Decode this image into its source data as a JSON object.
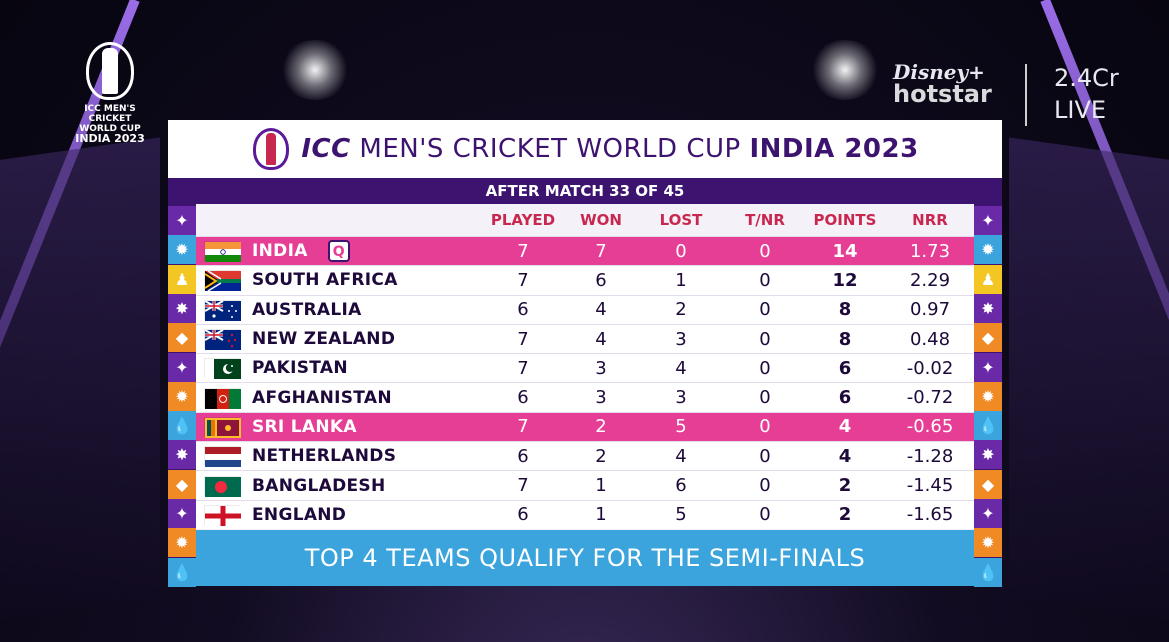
{
  "logo": {
    "lines": [
      "ICC MEN'S",
      "CRICKET",
      "WORLD CUP",
      "INDIA 2023"
    ]
  },
  "broadcaster": {
    "disney": "Disney+",
    "hotstar": "hotstar",
    "viewers": "2.4Cr",
    "status": "LIVE"
  },
  "board": {
    "title_icc": "ICC",
    "title_middle": "MEN'S CRICKET WORLD CUP",
    "title_bold": "INDIA 2023",
    "subtitle": "AFTER MATCH 33 OF 45",
    "footer": "TOP 4 TEAMS QUALIFY FOR THE SEMI-FINALS"
  },
  "columns": {
    "played": "PLAYED",
    "won": "WON",
    "lost": "LOST",
    "tnr": "T/NR",
    "points": "POINTS",
    "nrr": "NRR"
  },
  "teams": [
    {
      "name": "INDIA",
      "badge": "Q",
      "played": "7",
      "won": "7",
      "lost": "0",
      "tnr": "0",
      "points": "14",
      "nrr": "1.73"
    },
    {
      "name": "SOUTH AFRICA",
      "played": "7",
      "won": "6",
      "lost": "1",
      "tnr": "0",
      "points": "12",
      "nrr": "2.29"
    },
    {
      "name": "AUSTRALIA",
      "played": "6",
      "won": "4",
      "lost": "2",
      "tnr": "0",
      "points": "8",
      "nrr": "0.97"
    },
    {
      "name": "NEW ZEALAND",
      "played": "7",
      "won": "4",
      "lost": "3",
      "tnr": "0",
      "points": "8",
      "nrr": "0.48"
    },
    {
      "name": "PAKISTAN",
      "played": "7",
      "won": "3",
      "lost": "4",
      "tnr": "0",
      "points": "6",
      "nrr": "-0.02"
    },
    {
      "name": "AFGHANISTAN",
      "played": "6",
      "won": "3",
      "lost": "3",
      "tnr": "0",
      "points": "6",
      "nrr": "-0.72"
    },
    {
      "name": "SRI LANKA",
      "played": "7",
      "won": "2",
      "lost": "5",
      "tnr": "0",
      "points": "4",
      "nrr": "-0.65"
    },
    {
      "name": "NETHERLANDS",
      "played": "6",
      "won": "2",
      "lost": "4",
      "tnr": "0",
      "points": "4",
      "nrr": "-1.28"
    },
    {
      "name": "BANGLADESH",
      "played": "7",
      "won": "1",
      "lost": "6",
      "tnr": "0",
      "points": "2",
      "nrr": "-1.45"
    },
    {
      "name": "ENGLAND",
      "played": "6",
      "won": "1",
      "lost": "5",
      "tnr": "0",
      "points": "2",
      "nrr": "-1.65"
    }
  ],
  "colors": {
    "purple": "#3d1370",
    "highlight_pink": "#e63e94",
    "header_red": "#c8284f",
    "footer_blue": "#3ba4dc"
  }
}
